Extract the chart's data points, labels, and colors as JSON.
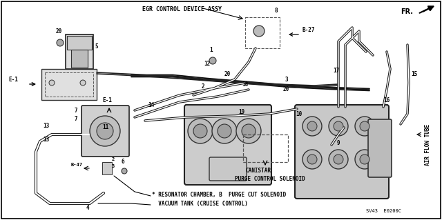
{
  "fig_width": 6.4,
  "fig_height": 3.19,
  "dpi": 100,
  "bg_color": "#ffffff",
  "diagram_bg": "#ffffff",
  "text_color": "#000000",
  "line_color": "#1a1a1a",
  "labels": {
    "egr": "EGR CONTROL DEVICE ASSY",
    "air_flow": "AIR FLOW TUBE",
    "fr": "FR.",
    "canistar": "CANISTAR",
    "purge_control": "PURGE CONTROL SOLENOID",
    "bottom1": "* RESONATOR CHAMBER, B  PURGE CUT SOLENOID",
    "bottom2": "  VACUUM TANK (CRUISE CONTROL)",
    "code": "SV43  E0200C"
  }
}
